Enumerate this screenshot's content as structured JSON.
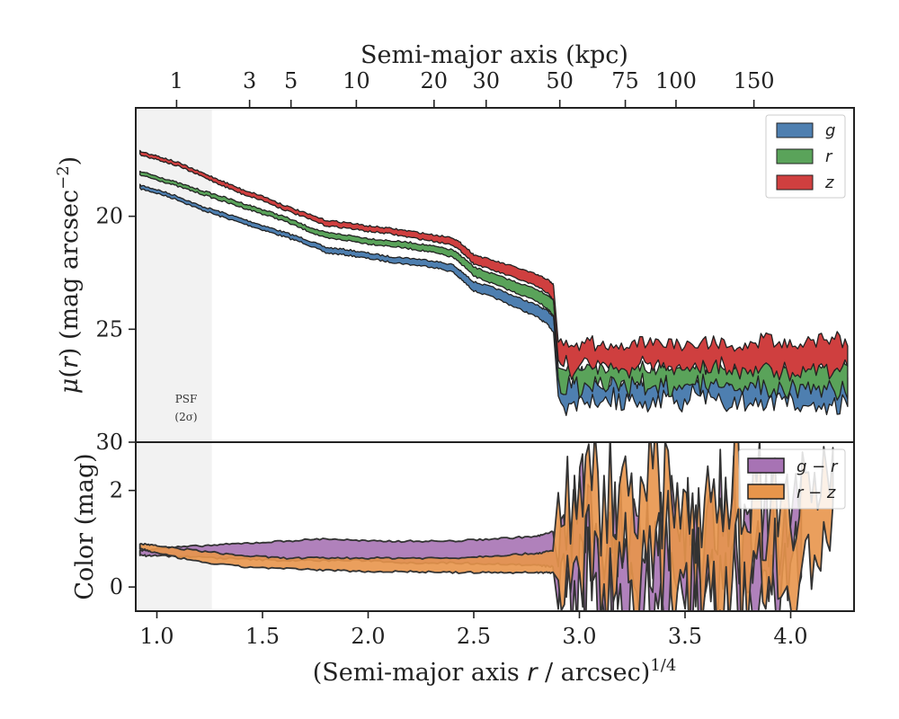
{
  "chart_data": [
    {
      "type": "area",
      "panel": "surface-brightness",
      "ylabel": "μ(r) (mag arcsec⁻²)",
      "ylabel_parts": {
        "mu": "μ",
        "r": "r",
        "rest": " (mag arcsec",
        "sup": "−2",
        "close": ")"
      },
      "top_xlabel": "Semi-major axis (kpc)",
      "top_ticks_kpc": [
        1,
        3,
        5,
        10,
        20,
        30,
        50,
        75,
        100,
        150
      ],
      "top_tick_labels": [
        "1",
        "3",
        "5",
        "10",
        "20",
        "30",
        "50",
        "75",
        "100",
        "150"
      ],
      "kpc_per_arcsec": 0.7,
      "xlim": [
        0.9,
        4.3
      ],
      "ylim": [
        30,
        15.2
      ],
      "yticks": [
        20,
        25,
        30
      ],
      "ytick_labels": [
        "20",
        "25",
        "30"
      ],
      "psf_shade_x": [
        0.9,
        1.26
      ],
      "psf_label": [
        "PSF",
        "(2σ)"
      ],
      "legend": {
        "placement": "top-right",
        "entries": [
          "g",
          "r",
          "z"
        ]
      },
      "series": [
        {
          "name": "g",
          "color": "#4e7fb0",
          "offset": 0.0,
          "x": [
            0.92,
            1.0,
            1.1,
            1.2,
            1.3,
            1.4,
            1.5,
            1.6,
            1.7,
            1.8,
            1.9,
            2.0,
            2.1,
            2.2,
            2.3,
            2.4,
            2.45,
            2.5,
            2.6,
            2.7,
            2.8,
            2.85,
            2.88
          ],
          "y": [
            18.7,
            18.9,
            19.2,
            19.6,
            19.9,
            20.2,
            20.5,
            20.8,
            21.1,
            21.5,
            21.6,
            21.75,
            21.9,
            22.0,
            22.1,
            22.3,
            22.7,
            23.1,
            23.4,
            23.8,
            24.2,
            24.5,
            24.8
          ],
          "halfwidth": [
            0.08,
            0.08,
            0.08,
            0.08,
            0.1,
            0.1,
            0.1,
            0.1,
            0.1,
            0.12,
            0.12,
            0.12,
            0.12,
            0.14,
            0.14,
            0.16,
            0.18,
            0.2,
            0.22,
            0.24,
            0.26,
            0.3,
            0.35
          ],
          "outer": {
            "x_start": 2.9,
            "x_end": 4.27,
            "mid": 27.5,
            "width": 0.75,
            "scatter": 0.45
          }
        },
        {
          "name": "r",
          "color": "#5aa35a",
          "offset": 0.0,
          "x": [
            0.92,
            1.0,
            1.1,
            1.2,
            1.3,
            1.4,
            1.5,
            1.6,
            1.7,
            1.8,
            1.9,
            2.0,
            2.1,
            2.2,
            2.3,
            2.4,
            2.45,
            2.5,
            2.6,
            2.7,
            2.8,
            2.85,
            2.88
          ],
          "y": [
            18.1,
            18.3,
            18.6,
            18.9,
            19.2,
            19.5,
            19.8,
            20.1,
            20.5,
            20.85,
            20.95,
            21.1,
            21.2,
            21.3,
            21.45,
            21.65,
            22.0,
            22.45,
            22.8,
            23.15,
            23.5,
            23.8,
            24.1
          ],
          "halfwidth": [
            0.08,
            0.08,
            0.08,
            0.08,
            0.1,
            0.1,
            0.1,
            0.1,
            0.1,
            0.12,
            0.12,
            0.12,
            0.12,
            0.14,
            0.14,
            0.16,
            0.18,
            0.2,
            0.22,
            0.24,
            0.26,
            0.3,
            0.35
          ],
          "outer": {
            "x_start": 2.9,
            "x_end": 4.27,
            "mid": 26.9,
            "width": 0.65,
            "scatter": 0.35
          }
        },
        {
          "name": "z",
          "color": "#cf3f3f",
          "offset": 0.0,
          "x": [
            0.92,
            1.0,
            1.1,
            1.2,
            1.3,
            1.4,
            1.5,
            1.6,
            1.7,
            1.8,
            1.9,
            2.0,
            2.1,
            2.2,
            2.3,
            2.4,
            2.45,
            2.5,
            2.6,
            2.7,
            2.8,
            2.85,
            2.88
          ],
          "y": [
            17.2,
            17.4,
            17.7,
            18.1,
            18.5,
            18.9,
            19.2,
            19.6,
            19.95,
            20.3,
            20.4,
            20.55,
            20.65,
            20.8,
            20.95,
            21.1,
            21.45,
            21.9,
            22.2,
            22.5,
            22.85,
            23.1,
            23.4
          ],
          "halfwidth": [
            0.08,
            0.08,
            0.08,
            0.08,
            0.1,
            0.1,
            0.1,
            0.1,
            0.1,
            0.12,
            0.12,
            0.12,
            0.12,
            0.14,
            0.14,
            0.16,
            0.18,
            0.2,
            0.22,
            0.24,
            0.26,
            0.3,
            0.35
          ],
          "outer": {
            "x_start": 2.9,
            "x_end": 4.27,
            "mid": 26.0,
            "width": 0.75,
            "scatter": 0.3
          }
        }
      ]
    },
    {
      "type": "area",
      "panel": "color",
      "ylabel": "Color (mag)",
      "xlabel_parts": {
        "pre": "(Semi-major axis ",
        "r": "r",
        "mid": " / arcsec)",
        "sup": "1/4"
      },
      "xlim": [
        0.9,
        4.3
      ],
      "ylim": [
        -0.5,
        3.0
      ],
      "yticks": [
        0,
        2
      ],
      "ytick_labels": [
        "0",
        "2"
      ],
      "xticks": [
        1.0,
        1.5,
        2.0,
        2.5,
        3.0,
        3.5,
        4.0
      ],
      "xtick_labels": [
        "1.0",
        "1.5",
        "2.0",
        "2.5",
        "3.0",
        "3.5",
        "4.0"
      ],
      "legend": {
        "placement": "top-right",
        "entries": [
          "g − r",
          "r − z"
        ]
      },
      "series": [
        {
          "name": "g − r",
          "color": "#a773b4",
          "x": [
            0.92,
            1.0,
            1.2,
            1.4,
            1.6,
            1.8,
            2.0,
            2.2,
            2.4,
            2.6,
            2.8,
            2.88
          ],
          "lo": [
            0.65,
            0.65,
            0.62,
            0.58,
            0.55,
            0.55,
            0.55,
            0.5,
            0.5,
            0.48,
            0.45,
            0.42
          ],
          "hi": [
            0.75,
            0.8,
            0.85,
            0.9,
            0.95,
            1.0,
            0.95,
            0.95,
            0.95,
            1.0,
            1.05,
            1.15
          ],
          "outer": {
            "x_start": 2.9,
            "x_end": 4.05,
            "mid": 0.6,
            "width": 1.6
          }
        },
        {
          "name": "r − z",
          "color": "#e8954b",
          "x": [
            0.92,
            1.0,
            1.2,
            1.4,
            1.6,
            1.8,
            2.0,
            2.2,
            2.4,
            2.6,
            2.8,
            2.88
          ],
          "lo": [
            0.8,
            0.7,
            0.52,
            0.42,
            0.38,
            0.35,
            0.32,
            0.32,
            0.3,
            0.3,
            0.3,
            0.3
          ],
          "hi": [
            0.9,
            0.85,
            0.75,
            0.65,
            0.6,
            0.6,
            0.6,
            0.6,
            0.6,
            0.65,
            0.7,
            0.75
          ],
          "outer": {
            "x_start": 2.9,
            "x_end": 4.2,
            "mid": 1.2,
            "width": 1.7
          }
        }
      ]
    }
  ]
}
